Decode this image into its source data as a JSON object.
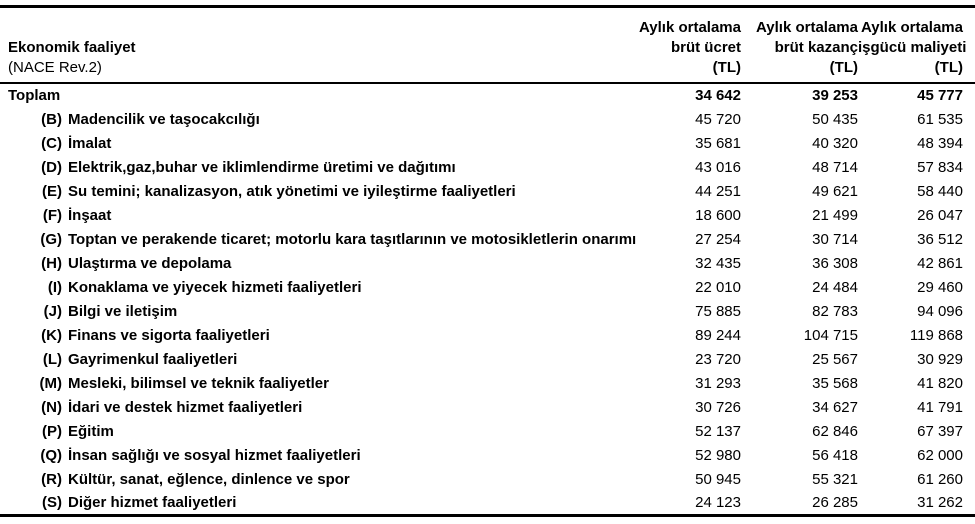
{
  "header": {
    "activity_title": "Ekonomik faaliyet",
    "activity_subtitle": "(NACE Rev.2)",
    "columns": [
      {
        "line1": "Aylık ortalama",
        "line2": "brüt ücret",
        "line3": "(TL)"
      },
      {
        "line1": "Aylık ortalama",
        "line2": "brüt kazanç",
        "line3": "(TL)"
      },
      {
        "line1": "Aylık ortalama",
        "line2": "işgücü maliyeti",
        "line3": "(TL)"
      }
    ]
  },
  "table": {
    "rows": [
      {
        "code": "",
        "label": "Toplam",
        "is_total": true,
        "values": [
          "34 642",
          "39 253",
          "45 777"
        ]
      },
      {
        "code": "(B)",
        "label": "Madencilik ve taşocakcılığı",
        "is_total": false,
        "values": [
          "45 720",
          "50 435",
          "61 535"
        ]
      },
      {
        "code": "(C)",
        "label": "İmalat",
        "is_total": false,
        "values": [
          "35 681",
          "40 320",
          "48 394"
        ]
      },
      {
        "code": "(D)",
        "label": "Elektrik,gaz,buhar ve iklimlendirme üretimi ve dağıtımı",
        "is_total": false,
        "values": [
          "43 016",
          "48 714",
          "57 834"
        ]
      },
      {
        "code": "(E)",
        "label": "Su temini; kanalizasyon, atık yönetimi ve iyileştirme faaliyetleri",
        "is_total": false,
        "values": [
          "44 251",
          "49 621",
          "58 440"
        ]
      },
      {
        "code": "(F)",
        "label": "İnşaat",
        "is_total": false,
        "values": [
          "18 600",
          "21 499",
          "26 047"
        ]
      },
      {
        "code": "(G)",
        "label": "Toptan ve perakende ticaret; motorlu kara taşıtlarının ve motosikletlerin onarımı",
        "is_total": false,
        "values": [
          "27 254",
          "30 714",
          "36 512"
        ]
      },
      {
        "code": "(H)",
        "label": "Ulaştırma ve depolama",
        "is_total": false,
        "values": [
          "32 435",
          "36 308",
          "42 861"
        ]
      },
      {
        "code": "(I)",
        "label": "Konaklama ve yiyecek hizmeti faaliyetleri",
        "is_total": false,
        "values": [
          "22 010",
          "24 484",
          "29 460"
        ]
      },
      {
        "code": "(J)",
        "label": "Bilgi ve iletişim",
        "is_total": false,
        "values": [
          "75 885",
          "82 783",
          "94 096"
        ]
      },
      {
        "code": "(K)",
        "label": "Finans ve sigorta faaliyetleri",
        "is_total": false,
        "values": [
          "89 244",
          "104 715",
          "119 868"
        ]
      },
      {
        "code": "(L)",
        "label": "Gayrimenkul faaliyetleri",
        "is_total": false,
        "values": [
          "23 720",
          "25 567",
          "30 929"
        ]
      },
      {
        "code": "(M)",
        "label": "Mesleki, bilimsel ve teknik faaliyetler",
        "is_total": false,
        "values": [
          "31 293",
          "35 568",
          "41 820"
        ]
      },
      {
        "code": "(N)",
        "label": "İdari ve destek hizmet faaliyetleri",
        "is_total": false,
        "values": [
          "30 726",
          "34 627",
          "41 791"
        ]
      },
      {
        "code": "(P)",
        "label": "Eğitim",
        "is_total": false,
        "values": [
          "52 137",
          "62 846",
          "67 397"
        ]
      },
      {
        "code": "(Q)",
        "label": "İnsan sağlığı ve sosyal hizmet faaliyetleri",
        "is_total": false,
        "values": [
          "52 980",
          "56 418",
          "62 000"
        ]
      },
      {
        "code": "(R)",
        "label": "Kültür, sanat, eğlence, dinlence ve spor",
        "is_total": false,
        "values": [
          "50 945",
          "55 321",
          "61 260"
        ]
      },
      {
        "code": "(S)",
        "label": "Diğer hizmet faaliyetleri",
        "is_total": false,
        "values": [
          "24 123",
          "26 285",
          "31 262"
        ]
      }
    ]
  }
}
